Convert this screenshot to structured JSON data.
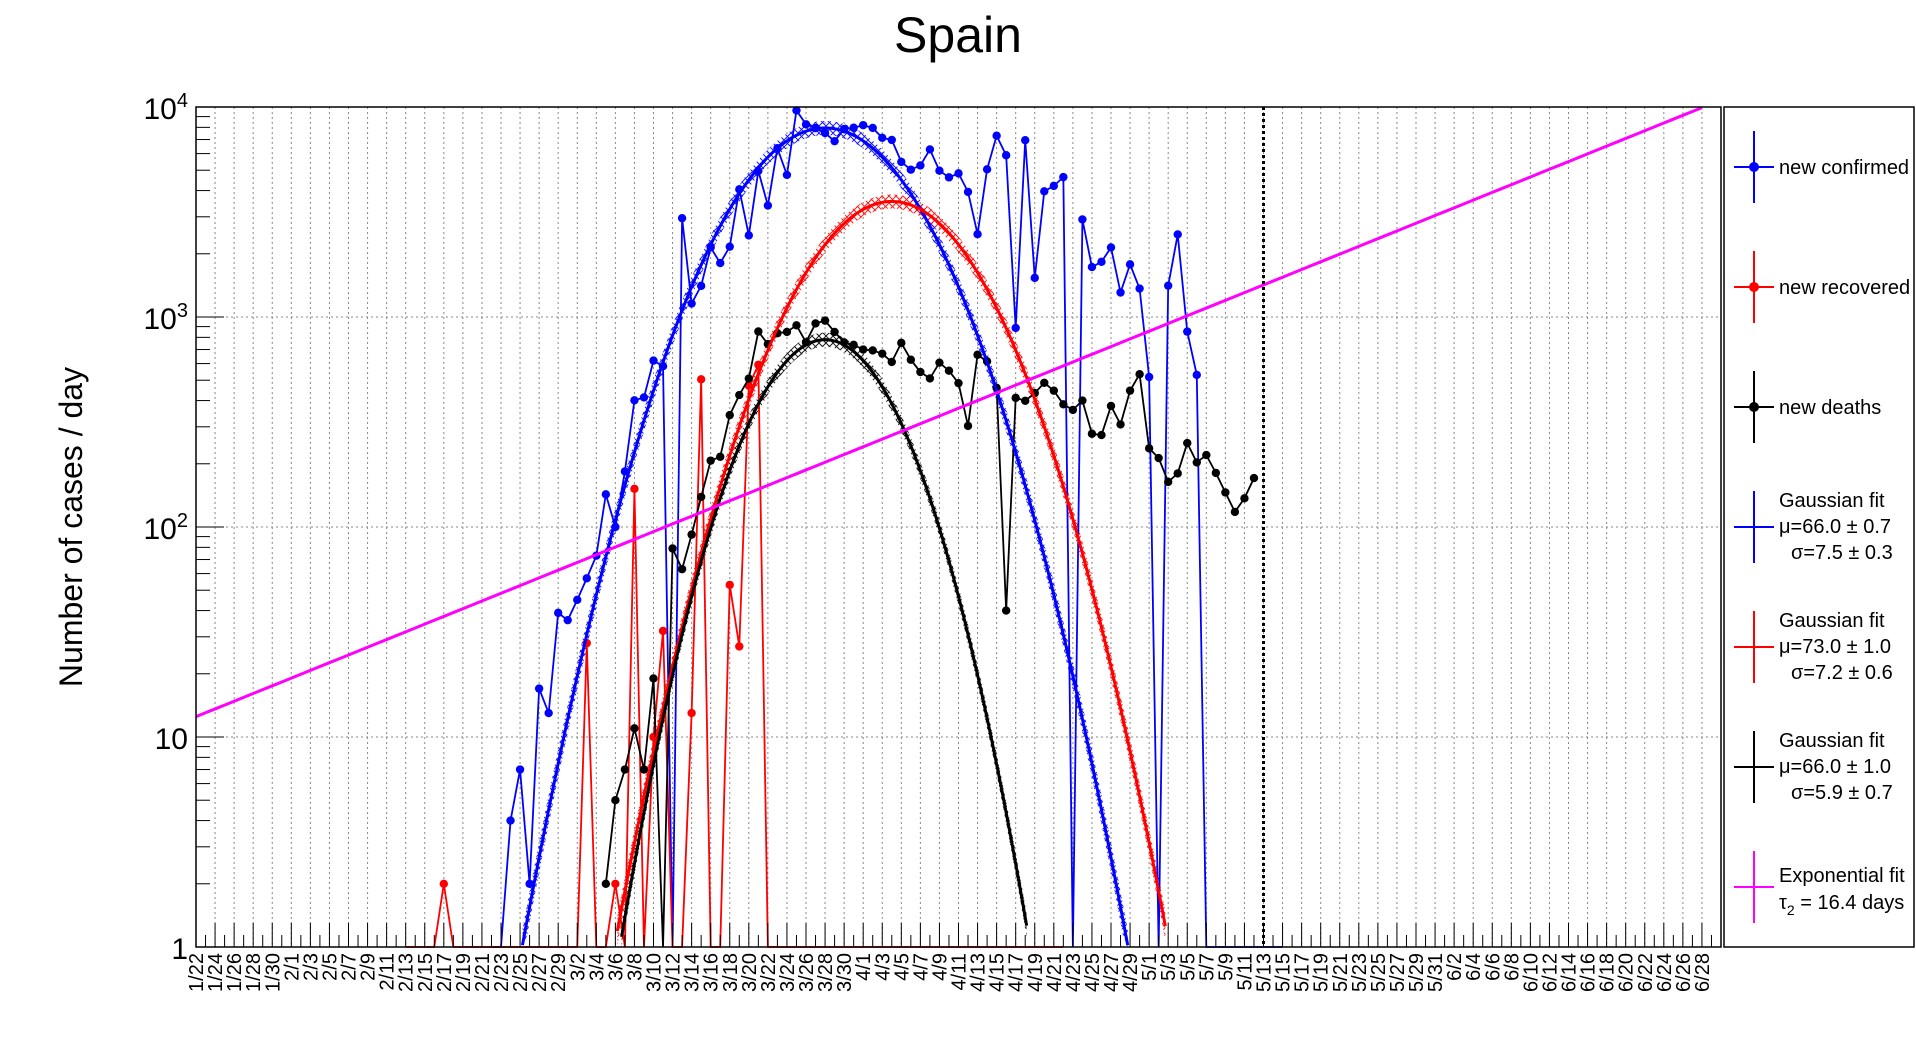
{
  "chart_data": {
    "type": "line",
    "title": "Spain",
    "ylabel": "Number of cases / day",
    "xlabel": "",
    "y_scale": "log",
    "ylim": [
      1,
      10000
    ],
    "y_ticks": [
      {
        "value": 1,
        "label": "1"
      },
      {
        "value": 10,
        "label": "10"
      },
      {
        "value": 100,
        "label": "10",
        "exp": "2"
      },
      {
        "value": 1000,
        "label": "10",
        "exp": "3"
      },
      {
        "value": 10000,
        "label": "10",
        "exp": "4"
      }
    ],
    "x_tick_labels": [
      "1/22",
      "1/24",
      "1/26",
      "1/28",
      "1/30",
      "2/1",
      "2/3",
      "2/5",
      "2/7",
      "2/9",
      "2/11",
      "2/13",
      "2/15",
      "2/17",
      "2/19",
      "2/21",
      "2/23",
      "2/25",
      "2/27",
      "2/29",
      "3/2",
      "3/4",
      "3/6",
      "3/8",
      "3/10",
      "3/12",
      "3/14",
      "3/16",
      "3/18",
      "3/20",
      "3/22",
      "3/24",
      "3/26",
      "3/28",
      "3/30",
      "4/1",
      "4/3",
      "4/5",
      "4/7",
      "4/9",
      "4/11",
      "4/13",
      "4/15",
      "4/17",
      "4/19",
      "4/21",
      "4/23",
      "4/25",
      "4/27",
      "4/29",
      "5/1",
      "5/3",
      "5/5",
      "5/7",
      "5/9",
      "5/11",
      "5/13",
      "5/15",
      "5/17",
      "5/19",
      "5/21",
      "5/23",
      "5/25",
      "5/27",
      "5/29",
      "5/31",
      "6/2",
      "6/4",
      "6/6",
      "6/8",
      "6/10",
      "6/12",
      "6/14",
      "6/16",
      "6/18",
      "6/20",
      "6/22",
      "6/24",
      "6/26",
      "6/28"
    ],
    "x_range_days": [
      0,
      160
    ],
    "current_date_marker_day": 112,
    "grid": true,
    "legend_position": "right",
    "colors": {
      "confirmed": "#0000ff",
      "recovered": "#ff0000",
      "deaths": "#000000",
      "exponential": "#ff00ff"
    },
    "series": [
      {
        "name": "new confirmed",
        "color": "#0000ff",
        "start_day": 31,
        "values": [
          1,
          1,
          4,
          7,
          2,
          17,
          13,
          39,
          36,
          45,
          57,
          73,
          143,
          100,
          184,
          401,
          414,
          620,
          583,
          1,
          2955,
          1159,
          1407,
          2144,
          1806,
          2162,
          4053,
          2447,
          4964,
          3394,
          6368,
          4749,
          9630,
          8271,
          7933,
          7516,
          6875,
          7846,
          7967,
          8195,
          7947,
          7134,
          6969,
          5478,
          5029,
          5267,
          6278,
          4973,
          4624,
          4830,
          3942,
          2479,
          5051,
          7300,
          5891,
          887,
          6948,
          1536,
          3968,
          4211,
          4635,
          1,
          2915,
          1729,
          1831,
          2144,
          1308,
          1781,
          1366,
          518,
          1,
          1410,
          2472,
          852,
          530,
          1,
          1,
          1,
          1,
          1,
          1,
          1,
          1,
          1
        ]
      },
      {
        "name": "new recovered",
        "color": "#ff0000",
        "start_day": 22,
        "values": [
          1,
          1,
          1,
          1,
          2,
          1,
          1,
          1,
          1,
          1,
          1,
          1,
          1,
          1,
          1,
          1,
          1,
          1,
          1,
          28,
          1,
          1,
          2,
          1,
          152,
          1,
          10,
          32,
          1,
          1,
          13,
          505,
          1,
          1,
          53,
          27,
          471,
          592,
          1,
          1,
          1,
          1,
          1,
          1,
          1,
          1,
          1,
          1,
          1,
          1,
          1,
          1,
          1,
          1,
          1,
          1,
          1,
          1,
          1,
          1,
          1,
          1,
          1,
          1,
          1,
          1,
          1,
          1,
          1,
          1
        ]
      },
      {
        "name": "new deaths",
        "color": "#000000",
        "start_day": 43,
        "values": [
          2,
          5,
          7,
          11,
          7,
          19,
          1,
          79,
          63,
          92,
          139,
          207,
          216,
          341,
          425,
          509,
          853,
          743,
          837,
          849,
          913,
          758,
          932,
          961,
          849,
          757,
          737,
          700,
          693,
          669,
          611,
          753,
          626,
          547,
          510,
          606,
          555,
          484,
          303,
          661,
          615,
          460,
          40,
          412,
          399,
          434,
          486,
          446,
          384,
          361,
          400,
          278,
          274,
          377,
          308,
          446,
          534,
          237,
          213,
          164,
          180,
          251,
          203,
          220,
          181,
          146,
          118,
          137,
          171
        ]
      }
    ],
    "fits": [
      {
        "label": "Gaussian fit",
        "line2": "μ=66.0 ± 0.7",
        "line3": "σ=7.5 ± 0.3",
        "color": "#0000ff",
        "mu": 66.0,
        "sigma": 7.5,
        "amplitude": 7950
      },
      {
        "label": "Gaussian fit",
        "line2": "μ=73.0 ± 1.0",
        "line3": "σ=7.2 ± 0.6",
        "color": "#ff0000",
        "mu": 73.0,
        "sigma": 7.2,
        "amplitude": 3550
      },
      {
        "label": "Gaussian fit",
        "line2": "μ=66.0 ± 1.0",
        "line3": "σ=5.9 ± 0.7",
        "color": "#000000",
        "mu": 66.0,
        "sigma": 5.9,
        "amplitude": 780
      },
      {
        "label": "Exponential fit",
        "line2": "τ",
        "line2_sub": "2",
        "line2_rest": " = 16.4 days",
        "color": "#ff00ff",
        "y0": 12.5,
        "doubling_days": 16.4
      }
    ],
    "legend": [
      {
        "label": "new confirmed",
        "color": "#0000ff"
      },
      {
        "label": "new recovered",
        "color": "#ff0000"
      },
      {
        "label": "new deaths",
        "color": "#000000"
      }
    ]
  }
}
